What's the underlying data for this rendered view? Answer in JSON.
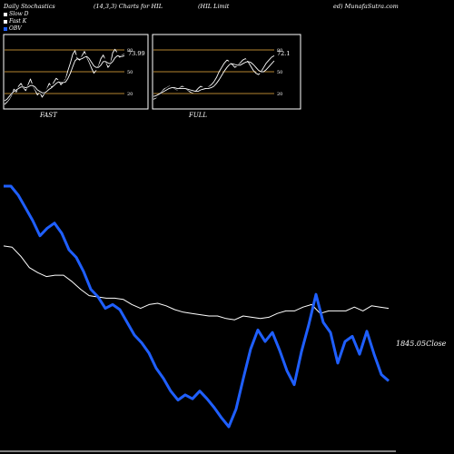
{
  "header": {
    "left": "Daily Stochastics",
    "params": "(14,3,3) Charts for HIL",
    "company": "(HIL  Limit",
    "suffix": "ed) MunafaSutra.com"
  },
  "legend": [
    {
      "label": "Slow  D",
      "color": "#ffffff"
    },
    {
      "label": "Fast K",
      "color": "#ffffff"
    },
    {
      "label": "OBV",
      "color": "#1f5fff"
    }
  ],
  "colors": {
    "background": "#000000",
    "price": "#ffffff",
    "obv": "#1f5fff",
    "level_line": "#b5832f",
    "panel_border": "#ffffff"
  },
  "chart_data": [
    {
      "type": "line",
      "title": "FAST",
      "value_label": "73.99",
      "ylim": [
        0,
        100
      ],
      "y_ticks": [
        20,
        50,
        80
      ],
      "grid": false,
      "series": [
        {
          "values": [
            5,
            8,
            12,
            18,
            26,
            22,
            30,
            34,
            28,
            24,
            32,
            40,
            31,
            25,
            18,
            22,
            15,
            20,
            26,
            34,
            29,
            36,
            41,
            38,
            32,
            36,
            40,
            52,
            62,
            74,
            79,
            68,
            66,
            72,
            78,
            70,
            63,
            55,
            48,
            52,
            58,
            68,
            73,
            65,
            56,
            60,
            76,
            81,
            76,
            70,
            73,
            74
          ]
        },
        {
          "values": [
            8,
            10,
            14,
            20,
            23,
            25,
            28,
            30,
            29,
            27,
            30,
            34,
            32,
            27,
            22,
            22,
            19,
            21,
            25,
            30,
            31,
            33,
            37,
            38,
            35,
            36,
            38,
            46,
            56,
            66,
            73,
            71,
            68,
            70,
            74,
            72,
            66,
            59,
            53,
            53,
            56,
            63,
            69,
            66,
            60,
            60,
            68,
            76,
            76,
            72,
            72,
            73
          ]
        },
        {
          "values": [
            10,
            12,
            16,
            20,
            23,
            25,
            27,
            29,
            29,
            28,
            29,
            31,
            31,
            29,
            25,
            23,
            21,
            21,
            23,
            26,
            28,
            31,
            34,
            36,
            35,
            35,
            36,
            41,
            48,
            57,
            65,
            68,
            67,
            68,
            70,
            71,
            68,
            63,
            58,
            56,
            56,
            59,
            64,
            64,
            62,
            61,
            64,
            69,
            72,
            71,
            71,
            72
          ]
        }
      ]
    },
    {
      "type": "line",
      "title": "FULL",
      "value_label": "72.1",
      "ylim": [
        0,
        100
      ],
      "y_ticks": [
        20,
        50,
        80
      ],
      "grid": false,
      "series": [
        {
          "values": [
            12,
            14,
            18,
            22,
            26,
            28,
            30,
            29,
            27,
            25,
            28,
            30,
            28,
            25,
            22,
            21,
            23,
            27,
            30,
            28,
            27,
            29,
            32,
            36,
            42,
            50,
            56,
            62,
            66,
            64,
            60,
            56,
            58,
            62,
            66,
            68,
            64,
            58,
            52,
            48,
            46,
            50,
            56,
            62,
            66,
            70,
            72
          ]
        },
        {
          "values": [
            14,
            15,
            18,
            21,
            24,
            27,
            29,
            29,
            28,
            26,
            27,
            28,
            28,
            26,
            24,
            22,
            22,
            24,
            27,
            28,
            28,
            28,
            30,
            33,
            38,
            45,
            51,
            57,
            62,
            64,
            62,
            59,
            58,
            60,
            63,
            66,
            66,
            62,
            57,
            52,
            49,
            49,
            52,
            57,
            62,
            66,
            70
          ]
        },
        {
          "values": [
            16,
            17,
            19,
            21,
            23,
            25,
            27,
            28,
            28,
            27,
            27,
            27,
            27,
            26,
            25,
            24,
            23,
            23,
            25,
            26,
            27,
            27,
            28,
            30,
            34,
            39,
            45,
            51,
            56,
            60,
            61,
            60,
            59,
            59,
            61,
            63,
            64,
            63,
            60,
            56,
            52,
            50,
            50,
            53,
            57,
            61,
            65
          ]
        }
      ]
    },
    {
      "type": "line",
      "close_label": "1845.05Close",
      "grid": false,
      "series": [
        {
          "values": [
            330,
            329,
            322,
            313,
            309,
            306,
            307,
            307,
            302,
            296,
            291,
            290,
            289,
            289,
            288,
            284,
            281,
            284,
            285,
            283,
            280,
            278,
            277,
            276,
            275,
            275,
            273,
            272,
            275,
            274,
            273,
            274,
            277,
            279,
            279,
            282,
            284,
            277,
            279,
            279,
            279,
            282,
            279,
            283,
            282,
            281
          ]
        },
        {
          "values": [
            377,
            377,
            370,
            360,
            350,
            338,
            344,
            348,
            340,
            327,
            321,
            310,
            296,
            290,
            281,
            284,
            280,
            270,
            260,
            254,
            246,
            234,
            226,
            216,
            209,
            213,
            210,
            216,
            210,
            203,
            195,
            188,
            202,
            226,
            249,
            264,
            255,
            262,
            248,
            232,
            221,
            247,
            268,
            292,
            270,
            262,
            238,
            255,
            259,
            245,
            263,
            245,
            229,
            224
          ]
        }
      ]
    }
  ]
}
